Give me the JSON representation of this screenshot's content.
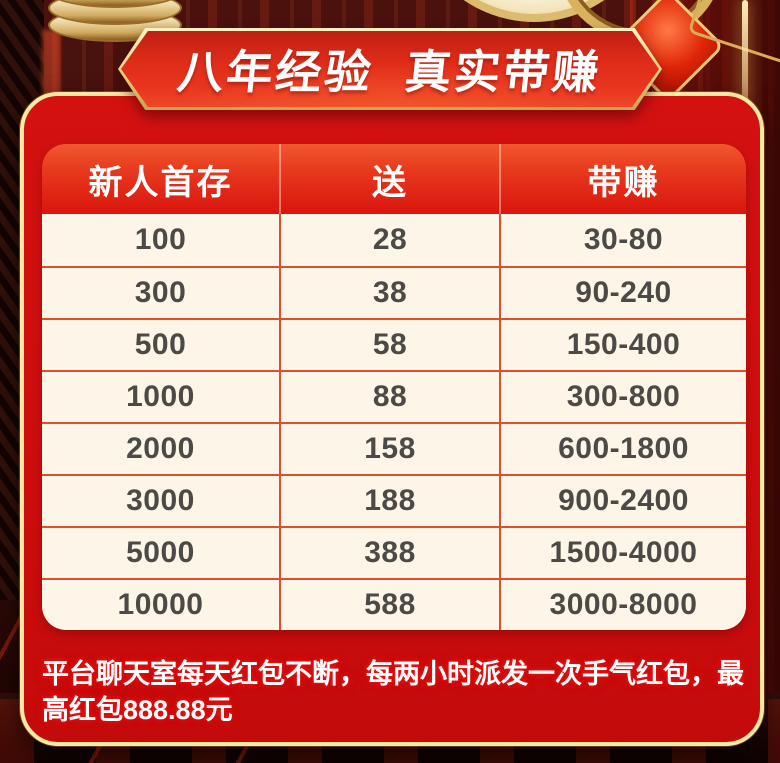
{
  "banner": {
    "title": "八年经验  真实带赚"
  },
  "table": {
    "headers": [
      "新人首存",
      "送",
      "带赚"
    ],
    "rows": [
      [
        "100",
        "28",
        "30-80"
      ],
      [
        "300",
        "38",
        "90-240"
      ],
      [
        "500",
        "58",
        "150-400"
      ],
      [
        "1000",
        "88",
        "300-800"
      ],
      [
        "2000",
        "158",
        "600-1800"
      ],
      [
        "3000",
        "188",
        "900-2400"
      ],
      [
        "5000",
        "388",
        "1500-4000"
      ],
      [
        "10000",
        "588",
        "3000-8000"
      ]
    ]
  },
  "note": {
    "text": "平台聊天室每天红包不断，每两小时派发一次手气红包，最高红包888.88元"
  },
  "colors": {
    "panel_red": "#cf0e0e",
    "gold_border": "#f8e9a2",
    "banner_red": "#e93620",
    "header_gradient_top": "#f0582f",
    "header_gradient_bottom": "#d9150d",
    "table_cream": "#fdf6e8",
    "row_border": "#de4f2c",
    "cell_text": "#4b4a46",
    "note_glow": "#e81212"
  }
}
